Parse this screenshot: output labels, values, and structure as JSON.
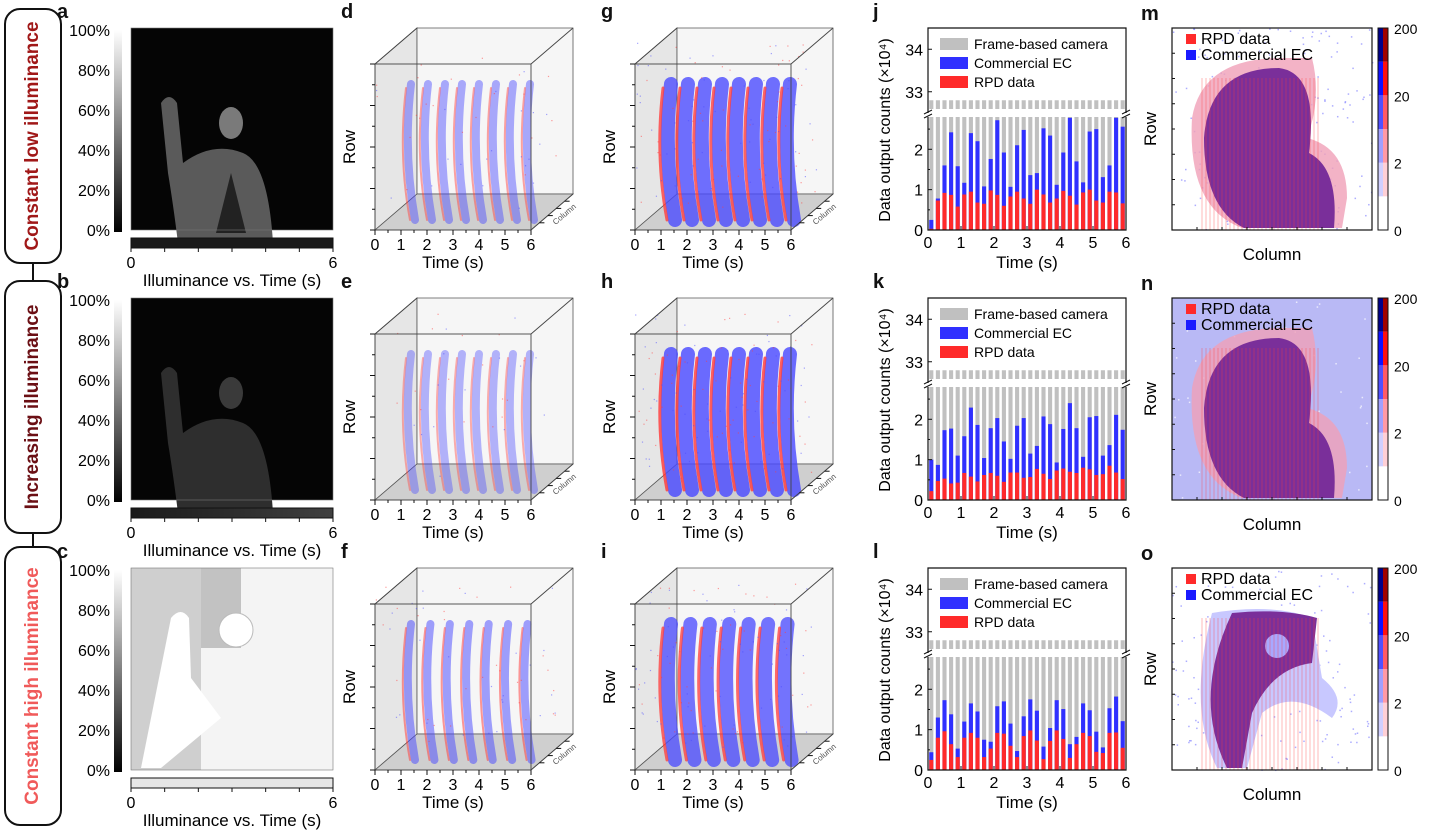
{
  "panel_letters": [
    "a",
    "b",
    "c",
    "d",
    "e",
    "f",
    "g",
    "h",
    "i",
    "j",
    "k",
    "l",
    "m",
    "n",
    "o"
  ],
  "conditions": [
    {
      "label": "Constant low illuminance",
      "color": "#a01818"
    },
    {
      "label": "Increasing illuminance",
      "color": "#6b0f14"
    },
    {
      "label": "Constant high illuminance",
      "color": "#f05a5a"
    }
  ],
  "frames": {
    "colorbar_ticks": [
      "100%",
      "80%",
      "60%",
      "40%",
      "20%",
      "0%"
    ],
    "timeline_ticks": [
      "0",
      "6"
    ],
    "timeline_label": "Illuminance vs. Time (s)",
    "panels": [
      {
        "letter": "a",
        "scene": "dark",
        "timeline_level": [
          0.1,
          0.1
        ]
      },
      {
        "letter": "b",
        "scene": "dim",
        "timeline_level": [
          0.1,
          0.25
        ]
      },
      {
        "letter": "c",
        "scene": "bright",
        "timeline_level": [
          0.9,
          0.9
        ]
      }
    ]
  },
  "cubes": {
    "xlabel": "Time (s)",
    "ylabel": "Row",
    "zlabel": "Column",
    "xticks": [
      "0",
      "1",
      "2",
      "3",
      "4",
      "5",
      "6"
    ],
    "colors": {
      "rpd": "#ff3b3b",
      "ec": "#4a4aff"
    },
    "panels": [
      {
        "letter": "d",
        "group": "commercial-EC-sparse",
        "density": 0.35,
        "waves": 8
      },
      {
        "letter": "e",
        "group": "commercial-EC-sparse",
        "density": 0.25,
        "waves": 8
      },
      {
        "letter": "f",
        "group": "commercial-EC-sparse",
        "density": 0.45,
        "waves": 7
      },
      {
        "letter": "g",
        "group": "RPD-dense",
        "density": 0.9,
        "waves": 8
      },
      {
        "letter": "h",
        "group": "RPD-dense",
        "density": 0.95,
        "waves": 8
      },
      {
        "letter": "i",
        "group": "RPD-dense",
        "density": 0.85,
        "waves": 7
      }
    ]
  },
  "chart_data": [
    {
      "panel": "j",
      "type": "bar",
      "title": "",
      "xlabel": "Time (s)",
      "ylabel": "Data output counts (×10⁴)",
      "xlim": [
        0,
        6
      ],
      "ylim_lower": [
        0,
        2.8
      ],
      "ylim_upper": [
        32.5,
        34.5
      ],
      "yticks_lower": [
        "0",
        "1",
        "2"
      ],
      "yticks_upper": [
        "33",
        "34"
      ],
      "xticks": [
        "0",
        "1",
        "2",
        "3",
        "4",
        "5",
        "6"
      ],
      "axis_break": true,
      "legend": [
        "Frame-based camera",
        "Commercial EC",
        "RPD data"
      ],
      "legend_placement": "top",
      "x": [
        0.1,
        0.3,
        0.5,
        0.7,
        0.9,
        1.1,
        1.3,
        1.5,
        1.7,
        1.9,
        2.1,
        2.3,
        2.5,
        2.7,
        2.9,
        3.1,
        3.3,
        3.5,
        3.7,
        3.9,
        4.1,
        4.3,
        4.5,
        4.7,
        4.9,
        5.1,
        5.3,
        5.5,
        5.7,
        5.9
      ],
      "series": [
        {
          "name": "Frame-based camera",
          "color": "#c0c0c0",
          "values": [
            32.8,
            32.8,
            32.8,
            32.8,
            32.8,
            32.8,
            32.8,
            32.8,
            32.8,
            32.8,
            32.8,
            32.8,
            32.8,
            32.8,
            32.8,
            32.8,
            32.8,
            32.8,
            32.8,
            32.8,
            32.8,
            32.8,
            32.8,
            32.8,
            32.8,
            32.8,
            32.8,
            32.8,
            32.8,
            32.8
          ]
        },
        {
          "name": "Commercial EC",
          "color": "#3030ff",
          "values": [
            0.25,
            0.78,
            1.6,
            2.42,
            1.58,
            1.17,
            2.4,
            2.2,
            1.08,
            1.76,
            2.72,
            1.92,
            1.07,
            2.1,
            2.48,
            1.36,
            1.41,
            2.52,
            2.34,
            1.12,
            1.92,
            2.78,
            1.7,
            1.18,
            2.44,
            2.5,
            1.31,
            1.6,
            2.78,
            2.56
          ]
        },
        {
          "name": "RPD data",
          "color": "#ff2a2a",
          "values": [
            0.03,
            0.73,
            0.92,
            0.87,
            0.58,
            0.88,
            0.95,
            0.68,
            0.65,
            0.98,
            0.87,
            0.6,
            0.83,
            0.95,
            0.78,
            0.65,
            1.0,
            0.88,
            0.68,
            0.78,
            0.97,
            0.85,
            0.63,
            0.93,
            1.0,
            0.73,
            0.68,
            0.95,
            0.93,
            0.66
          ]
        }
      ]
    },
    {
      "panel": "k",
      "type": "bar",
      "title": "",
      "xlabel": "Time (s)",
      "ylabel": "Data output counts (×10⁴)",
      "xlim": [
        0,
        6
      ],
      "ylim_lower": [
        0,
        2.8
      ],
      "ylim_upper": [
        32.5,
        34.5
      ],
      "yticks_lower": [
        "0",
        "1",
        "2"
      ],
      "yticks_upper": [
        "33",
        "34"
      ],
      "xticks": [
        "0",
        "1",
        "2",
        "3",
        "4",
        "5",
        "6"
      ],
      "axis_break": true,
      "legend": [
        "Frame-based camera",
        "Commercial EC",
        "RPD data"
      ],
      "legend_placement": "top",
      "x": [
        0.1,
        0.3,
        0.5,
        0.7,
        0.9,
        1.1,
        1.3,
        1.5,
        1.7,
        1.9,
        2.1,
        2.3,
        2.5,
        2.7,
        2.9,
        3.1,
        3.3,
        3.5,
        3.7,
        3.9,
        4.1,
        4.3,
        4.5,
        4.7,
        4.9,
        5.1,
        5.3,
        5.5,
        5.7,
        5.9
      ],
      "series": [
        {
          "name": "Frame-based camera",
          "color": "#c0c0c0",
          "values": [
            32.8,
            32.8,
            32.8,
            32.8,
            32.8,
            32.8,
            32.8,
            32.8,
            32.8,
            32.8,
            32.8,
            32.8,
            32.8,
            32.8,
            32.8,
            32.8,
            32.8,
            32.8,
            32.8,
            32.8,
            32.8,
            32.8,
            32.8,
            32.8,
            32.8,
            32.8,
            32.8,
            32.8,
            32.8,
            32.8
          ]
        },
        {
          "name": "Commercial EC",
          "color": "#3030ff",
          "values": [
            1.0,
            0.87,
            1.73,
            1.77,
            1.1,
            1.58,
            2.29,
            1.86,
            1.04,
            1.78,
            2.03,
            1.45,
            1.02,
            1.84,
            2.03,
            1.15,
            1.34,
            2.07,
            1.88,
            0.93,
            1.76,
            2.4,
            1.78,
            1.07,
            2.05,
            2.08,
            1.1,
            1.36,
            2.11,
            1.74
          ]
        },
        {
          "name": "RPD data",
          "color": "#ff2a2a",
          "values": [
            0.22,
            0.47,
            0.53,
            0.41,
            0.43,
            0.67,
            0.58,
            0.46,
            0.62,
            0.67,
            0.6,
            0.45,
            0.68,
            0.68,
            0.55,
            0.57,
            0.77,
            0.65,
            0.52,
            0.73,
            0.78,
            0.7,
            0.67,
            0.8,
            0.76,
            0.62,
            0.64,
            0.85,
            0.68,
            0.52
          ]
        }
      ]
    },
    {
      "panel": "l",
      "type": "bar",
      "title": "",
      "xlabel": "Time (s)",
      "ylabel": "Data output counts (×10⁴)",
      "xlim": [
        0,
        6
      ],
      "ylim_lower": [
        0,
        2.8
      ],
      "ylim_upper": [
        32.5,
        34.5
      ],
      "yticks_lower": [
        "0",
        "1",
        "2"
      ],
      "yticks_upper": [
        "33",
        "34"
      ],
      "xticks": [
        "0",
        "1",
        "2",
        "3",
        "4",
        "5",
        "6"
      ],
      "axis_break": true,
      "legend": [
        "Frame-based camera",
        "Commercial EC",
        "RPD data"
      ],
      "legend_placement": "top",
      "x": [
        0.1,
        0.3,
        0.5,
        0.7,
        0.9,
        1.1,
        1.3,
        1.5,
        1.7,
        1.9,
        2.1,
        2.3,
        2.5,
        2.7,
        2.9,
        3.1,
        3.3,
        3.5,
        3.7,
        3.9,
        4.1,
        4.3,
        4.5,
        4.7,
        4.9,
        5.1,
        5.3,
        5.5,
        5.7,
        5.9
      ],
      "series": [
        {
          "name": "Frame-based camera",
          "color": "#c0c0c0",
          "values": [
            32.8,
            32.8,
            32.8,
            32.8,
            32.8,
            32.8,
            32.8,
            32.8,
            32.8,
            32.8,
            32.8,
            32.8,
            32.8,
            32.8,
            32.8,
            32.8,
            32.8,
            32.8,
            32.8,
            32.8,
            32.8,
            32.8,
            32.8,
            32.8,
            32.8,
            32.8,
            32.8,
            32.8,
            32.8,
            32.8
          ]
        },
        {
          "name": "Commercial EC",
          "color": "#3030ff",
          "values": [
            0.44,
            1.3,
            1.73,
            1.38,
            0.53,
            1.2,
            1.65,
            1.45,
            0.75,
            0.7,
            1.58,
            1.7,
            1.15,
            0.47,
            1.33,
            1.75,
            1.47,
            0.58,
            1.04,
            1.73,
            1.51,
            0.64,
            0.82,
            1.65,
            1.48,
            0.95,
            0.56,
            1.53,
            1.82,
            1.21
          ]
        },
        {
          "name": "RPD data",
          "color": "#ff2a2a",
          "values": [
            0.25,
            0.8,
            0.96,
            0.64,
            0.32,
            0.8,
            0.92,
            0.8,
            0.32,
            0.53,
            0.92,
            0.9,
            0.6,
            0.32,
            0.84,
            0.98,
            0.73,
            0.27,
            0.72,
            0.98,
            0.77,
            0.3,
            0.64,
            0.92,
            0.84,
            0.45,
            0.42,
            0.92,
            0.93,
            0.55
          ]
        }
      ]
    }
  ],
  "maps": {
    "xlabel": "Column",
    "ylabel": "Row",
    "legend": [
      {
        "label": "RPD data",
        "color": "#ff2a2a"
      },
      {
        "label": "Commercial EC",
        "color": "#1a1aff"
      }
    ],
    "colorbar_ticks": [
      "200",
      "20",
      "2",
      "0"
    ],
    "colorbar_scale": "log",
    "panels": [
      {
        "letter": "m",
        "background": "sparse"
      },
      {
        "letter": "n",
        "background": "dense-blue"
      },
      {
        "letter": "o",
        "background": "sparse"
      }
    ]
  }
}
